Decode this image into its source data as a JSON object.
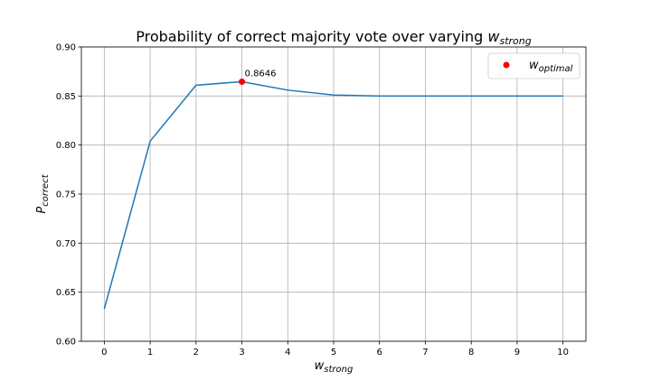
{
  "chart_data": {
    "type": "line",
    "title": {
      "main": "Probability of correct majority vote over varying ",
      "var": "w",
      "sub": "strong"
    },
    "xlabel": {
      "var": "w",
      "sub": "strong"
    },
    "ylabel": {
      "var": "P",
      "sub": "correct"
    },
    "x": [
      0,
      1,
      2,
      3,
      4,
      5,
      6,
      7,
      8,
      9,
      10
    ],
    "series": [
      {
        "values": [
          0.633,
          0.804,
          0.861,
          0.8646,
          0.856,
          0.851,
          0.85,
          0.85,
          0.85,
          0.85,
          0.85
        ],
        "color": "#1f77b4"
      }
    ],
    "highlight": {
      "x": 3,
      "y": 0.8646,
      "label": "0.8646",
      "color": "#ff0000"
    },
    "legend": {
      "position": "top-right",
      "entries": [
        {
          "var": "w",
          "sub": "optimal",
          "marker": "red-dot"
        }
      ]
    },
    "xlim": [
      -0.5,
      10.5
    ],
    "ylim": [
      0.6,
      0.9
    ],
    "xticks": [
      "0",
      "1",
      "2",
      "3",
      "4",
      "5",
      "6",
      "7",
      "8",
      "9",
      "10"
    ],
    "yticks": [
      "0.60",
      "0.65",
      "0.70",
      "0.75",
      "0.80",
      "0.85",
      "0.90"
    ],
    "grid": true
  }
}
